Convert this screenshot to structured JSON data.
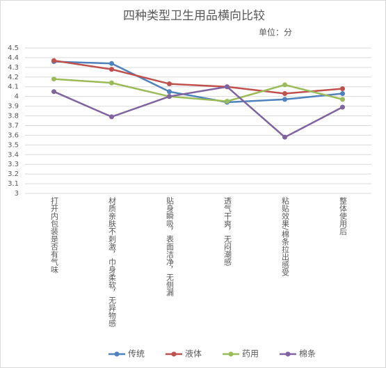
{
  "chart_data": {
    "type": "line",
    "title": "四种类型卫生用品横向比较",
    "subtitle": "单位：分",
    "categories": [
      "打开内包装是否有气味",
      "材质亲肤不刺激，巾身柔软，无异物感",
      "贴身瞬吸，表面洁净，无侧漏",
      "透气干爽，无闷潮感",
      "粘贴效果/棉条拉出感受",
      "整体使用后"
    ],
    "series": [
      {
        "name": "传统",
        "color": "#4f81bd",
        "values": [
          4.36,
          4.34,
          4.05,
          3.94,
          3.97,
          4.03
        ]
      },
      {
        "name": "液体",
        "color": "#c0504d",
        "values": [
          4.37,
          4.28,
          4.13,
          4.1,
          4.03,
          4.08
        ]
      },
      {
        "name": "药用",
        "color": "#9bbb59",
        "values": [
          4.18,
          4.14,
          4.0,
          3.95,
          4.12,
          3.97
        ]
      },
      {
        "name": "棉条",
        "color": "#8064a2",
        "values": [
          4.05,
          3.79,
          4.0,
          4.1,
          3.58,
          3.89
        ]
      }
    ],
    "ylim": [
      3,
      4.5
    ],
    "yticks": [
      3,
      3.1,
      3.2,
      3.3,
      3.4,
      3.5,
      3.6,
      3.7,
      3.8,
      3.9,
      4,
      4.1,
      4.2,
      4.3,
      4.4,
      4.5
    ],
    "grid": true
  }
}
